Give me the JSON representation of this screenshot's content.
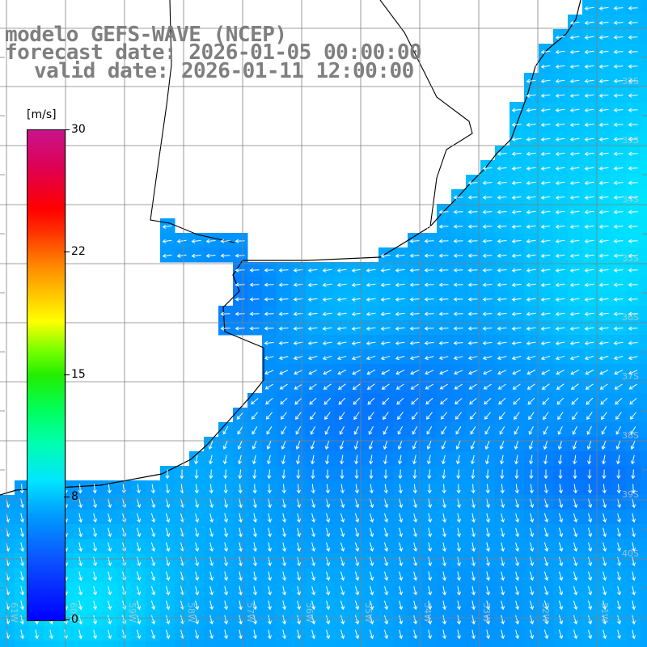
{
  "title": {
    "line1": "modelo GEFS-WAVE (NCEP)",
    "line2": "forecast date: 2026-01-05 00:00:00",
    "line3": "valid date: 2026-01-11 12:00:00"
  },
  "colorbar": {
    "units": "[m/s]",
    "labels": [
      "30",
      "22",
      "15",
      "8",
      "0"
    ],
    "values": [
      30,
      22,
      15,
      8,
      0
    ],
    "min": 0,
    "max": 30,
    "colors": [
      "#0000ff",
      "#00a0ff",
      "#00e5ff",
      "#00ff7f",
      "#44ff00",
      "#ffff00",
      "#ff8000",
      "#ff0000",
      "#c8148c"
    ]
  },
  "grid": {
    "lat_labels": [
      "32S",
      "33S",
      "34S",
      "35S",
      "36S",
      "37S",
      "38S",
      "39S",
      "40S"
    ],
    "lon_labels": [
      "61W",
      "60W",
      "59W",
      "58W",
      "57W",
      "56W",
      "55W",
      "54W",
      "53W",
      "52W",
      "51W"
    ]
  },
  "colors": {
    "land": "#ffffff",
    "coast": "#000000",
    "arrows": "#ffffff",
    "title": "#7f7f7f",
    "grid": "#808080"
  },
  "field": {
    "quantity": "wind speed",
    "arrow_direction_north": "toward west (easterly flow)",
    "arrow_direction_south": "toward south-southwest",
    "speed_range_ms": [
      3,
      10
    ]
  }
}
